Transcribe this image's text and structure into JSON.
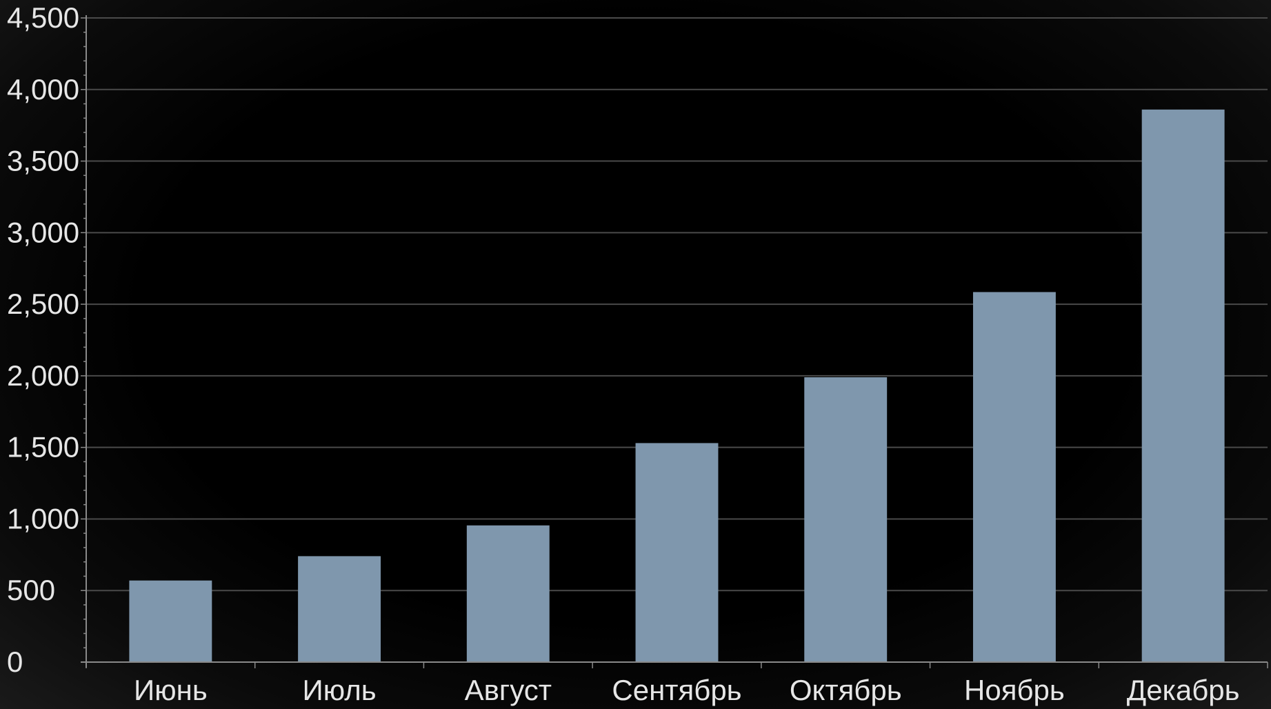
{
  "chart_data": {
    "type": "bar",
    "categories": [
      "Июнь",
      "Июль",
      "Август",
      "Сентябрь",
      "Октябрь",
      "Ноябрь",
      "Декабрь"
    ],
    "values": [
      570,
      740,
      955,
      1530,
      1990,
      2585,
      3860
    ],
    "ylim": [
      0,
      4500
    ],
    "y_ticks": [
      0,
      500,
      1000,
      1500,
      2000,
      2500,
      3000,
      3500,
      4000,
      4500
    ],
    "y_tick_labels": [
      "0",
      "500",
      "1,000",
      "1,500",
      "2,000",
      "2,500",
      "3,000",
      "3,500",
      "4,000",
      "4,500"
    ],
    "grid": true,
    "legend": "none",
    "colors": {
      "bar": "#7f97ad",
      "grid": "#4a4a4a",
      "axis": "#8a8a8a",
      "text": "#e6e6e6",
      "background": "#000000"
    }
  }
}
